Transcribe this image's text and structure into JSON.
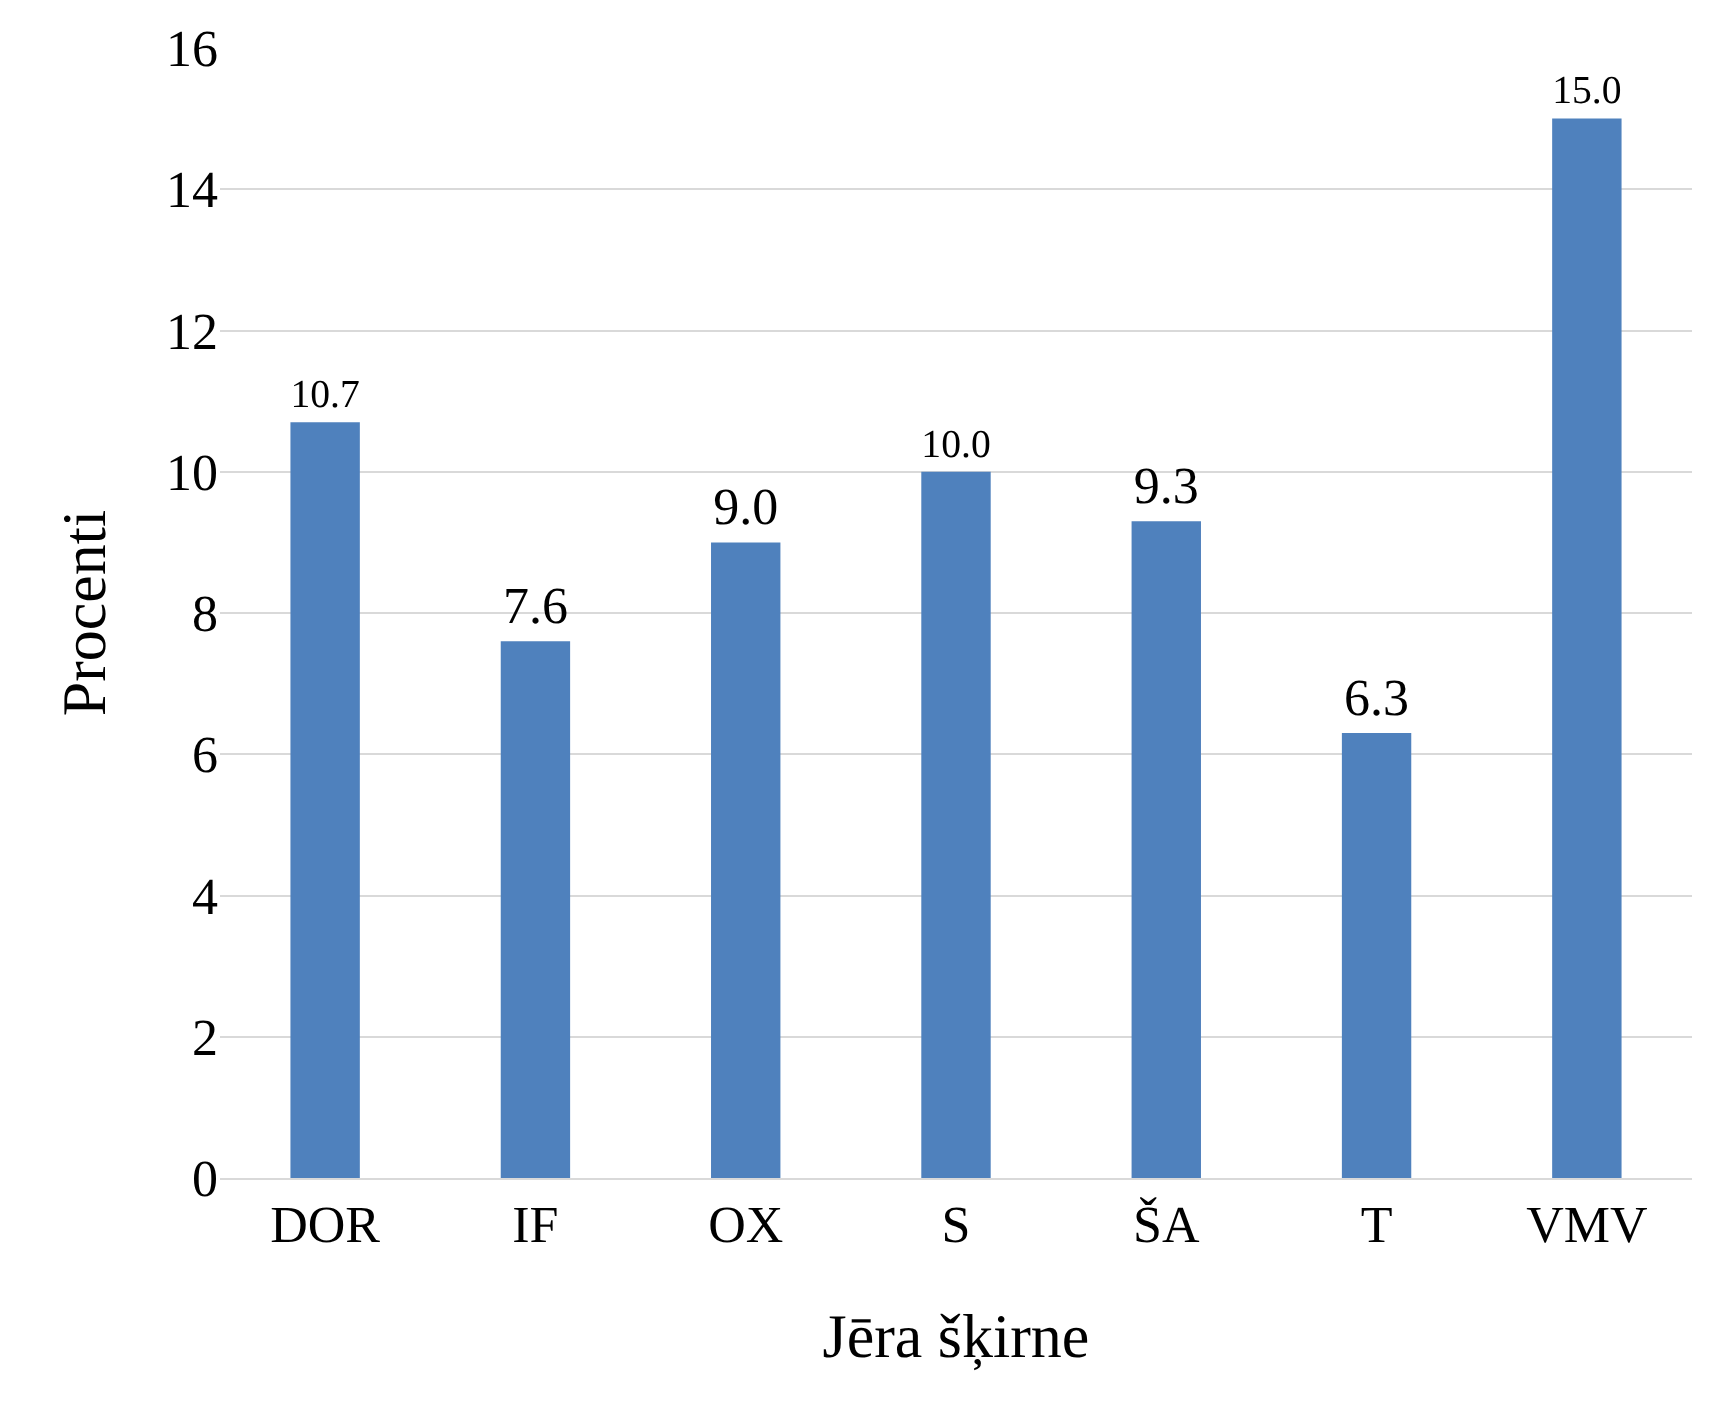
{
  "chart_data": {
    "type": "bar",
    "xlabel": "Jēra šķirne",
    "ylabel": "Procenti",
    "categories": [
      "DOR",
      "IF",
      "OX",
      "S",
      "ŠA",
      "T",
      "VMV"
    ],
    "values": [
      10.7,
      7.6,
      9.0,
      10.0,
      9.3,
      6.3,
      15.0
    ],
    "value_labels": [
      "10.7",
      "7.6",
      "9.0",
      "10.0",
      "9.3",
      "6.3",
      "15.0"
    ],
    "color": "#4f81bd",
    "ylim": [
      0,
      16
    ],
    "yticks": [
      0,
      2,
      4,
      6,
      8,
      10,
      12,
      14,
      16
    ],
    "grid": "y",
    "legend": false
  }
}
